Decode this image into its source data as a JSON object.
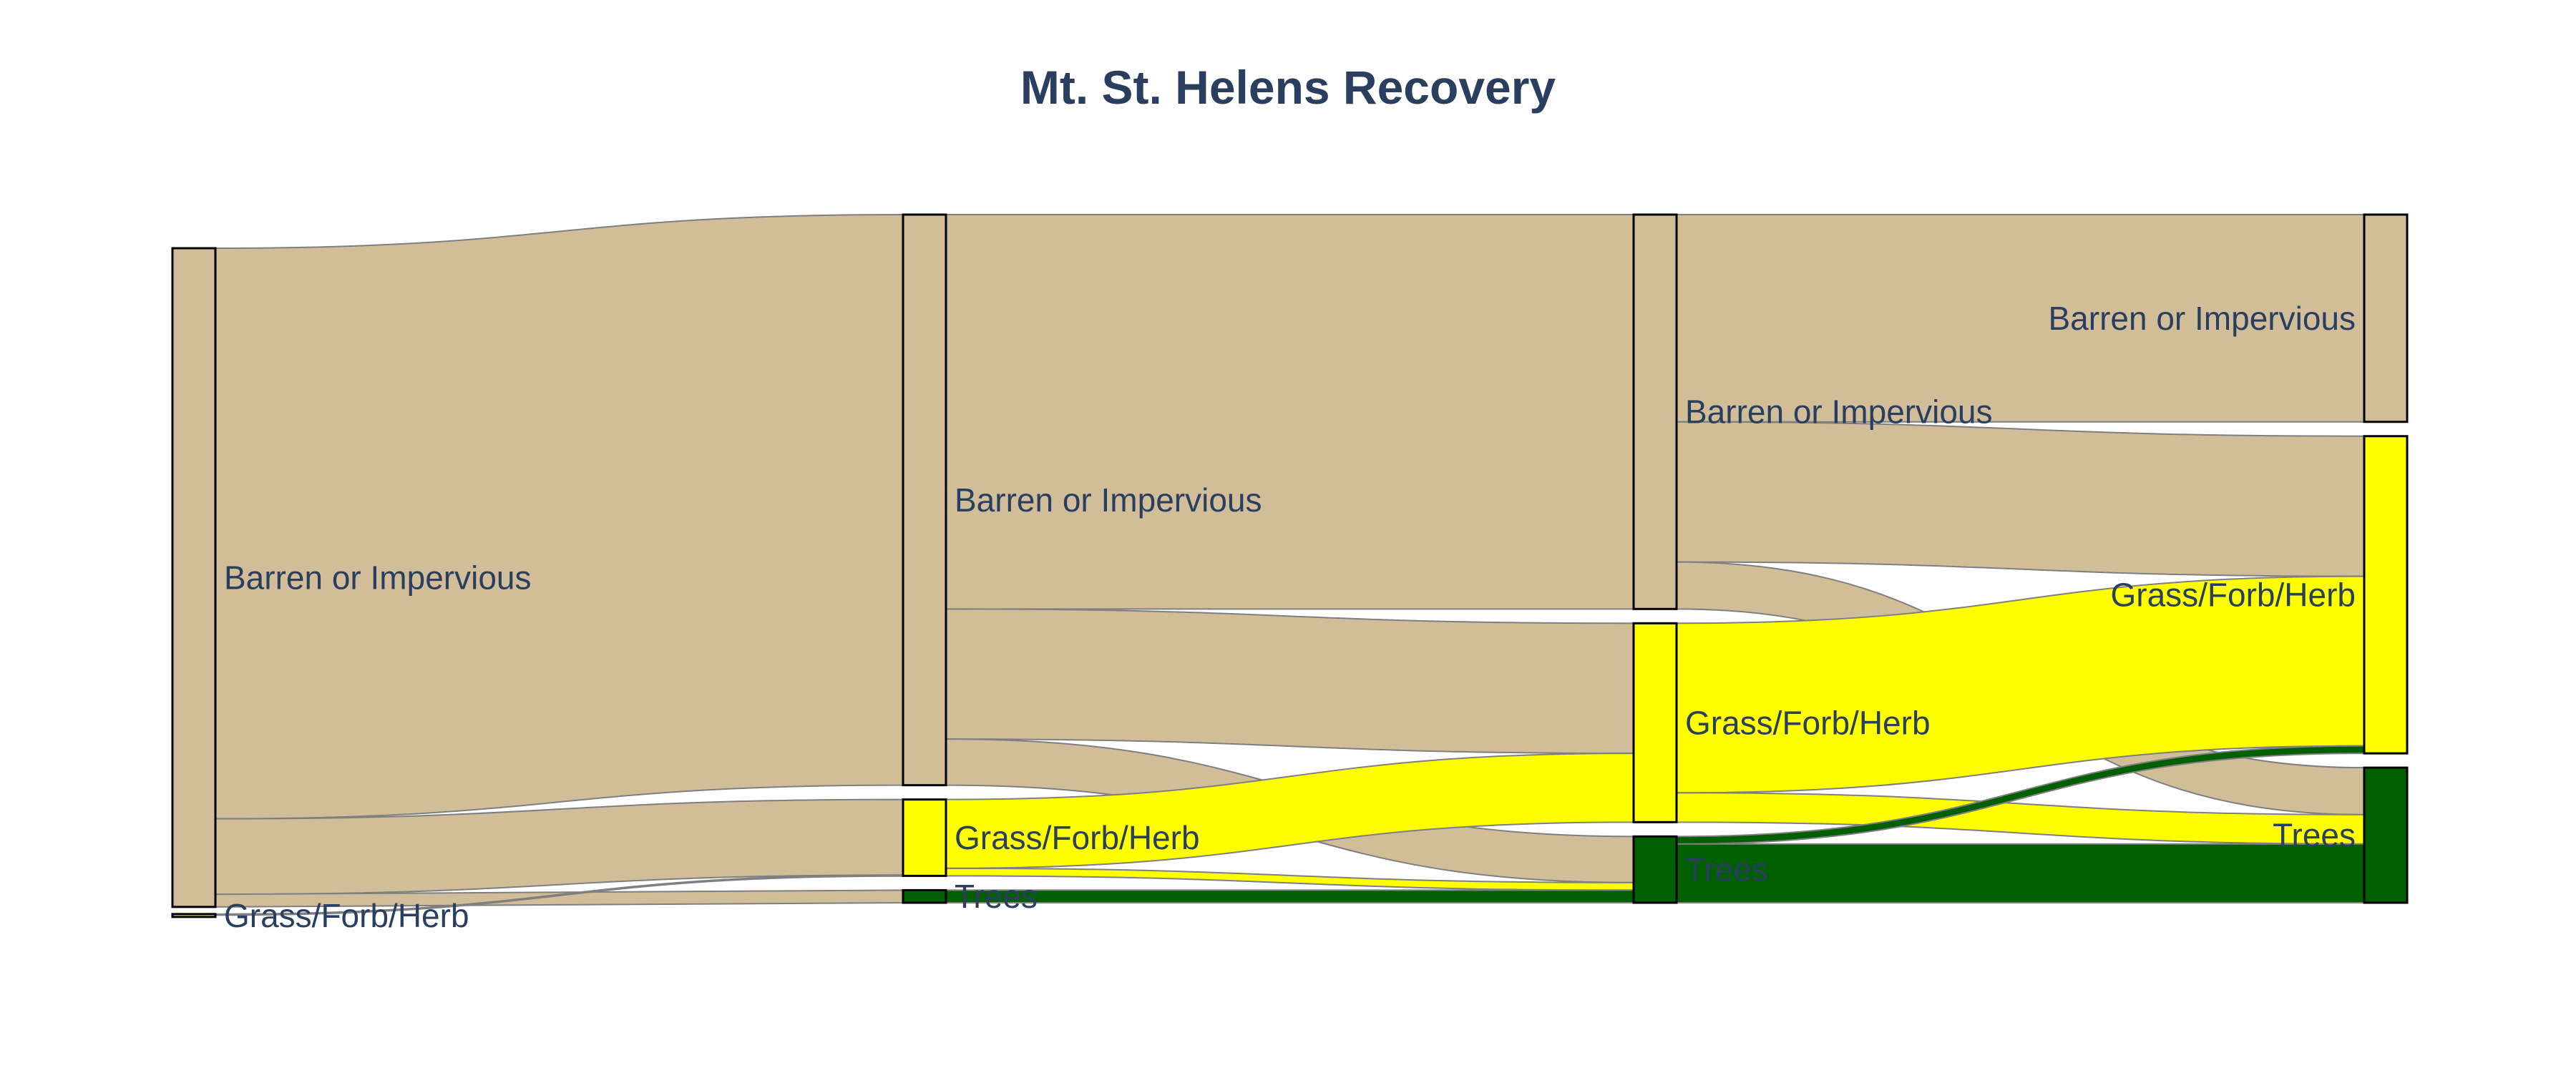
{
  "chart_data": {
    "type": "sankey",
    "title": "Mt. St. Helens Recovery",
    "colors": {
      "Barren or Impervious": "#d2bd99",
      "Grass/Forb/Herb": "#ffff00",
      "Trees": "#005f00",
      "link_stroke": "#7f7f7f",
      "node_stroke": "#000000",
      "text": "#2a3f5f"
    },
    "nodes": [
      {
        "id": "b0",
        "label": "Barren or Impervious",
        "category": "Barren or Impervious",
        "stage": 0
      },
      {
        "id": "g0",
        "label": "Grass/Forb/Herb",
        "category": "Grass/Forb/Herb",
        "stage": 0
      },
      {
        "id": "b1",
        "label": "Barren or Impervious",
        "category": "Barren or Impervious",
        "stage": 1
      },
      {
        "id": "g1",
        "label": "Grass/Forb/Herb",
        "category": "Grass/Forb/Herb",
        "stage": 1
      },
      {
        "id": "t1",
        "label": "Trees",
        "category": "Trees",
        "stage": 1
      },
      {
        "id": "b2",
        "label": "Barren or Impervious",
        "category": "Barren or Impervious",
        "stage": 2
      },
      {
        "id": "g2",
        "label": "Grass/Forb/Herb",
        "category": "Grass/Forb/Herb",
        "stage": 2
      },
      {
        "id": "t2",
        "label": "Trees",
        "category": "Trees",
        "stage": 2
      },
      {
        "id": "b3",
        "label": "Barren or Impervious",
        "category": "Barren or Impervious",
        "stage": 3
      },
      {
        "id": "g3",
        "label": "Grass/Forb/Herb",
        "category": "Grass/Forb/Herb",
        "stage": 3
      },
      {
        "id": "t3",
        "label": "Trees",
        "category": "Trees",
        "stage": 3
      }
    ],
    "links": [
      {
        "source": "b0",
        "target": "b1",
        "value": 680,
        "color_of": "b0"
      },
      {
        "source": "b0",
        "target": "g1",
        "value": 90,
        "color_of": "b0"
      },
      {
        "source": "b0",
        "target": "t1",
        "value": 15,
        "color_of": "b0"
      },
      {
        "source": "g0",
        "target": "g1",
        "value": 1,
        "color_of": "g0"
      },
      {
        "source": "b1",
        "target": "b2",
        "value": 470,
        "color_of": "b1"
      },
      {
        "source": "b1",
        "target": "g2",
        "value": 155,
        "color_of": "b1"
      },
      {
        "source": "b1",
        "target": "t2",
        "value": 55,
        "color_of": "b1"
      },
      {
        "source": "g1",
        "target": "g2",
        "value": 82,
        "color_of": "g1"
      },
      {
        "source": "g1",
        "target": "t2",
        "value": 9,
        "color_of": "g1"
      },
      {
        "source": "t1",
        "target": "t2",
        "value": 15,
        "color_of": "t1"
      },
      {
        "source": "b2",
        "target": "b3",
        "value": 247,
        "color_of": "b2"
      },
      {
        "source": "b2",
        "target": "g3",
        "value": 167,
        "color_of": "b2"
      },
      {
        "source": "b2",
        "target": "t3",
        "value": 56,
        "color_of": "b2"
      },
      {
        "source": "g2",
        "target": "g3",
        "value": 202,
        "color_of": "g2"
      },
      {
        "source": "g2",
        "target": "t3",
        "value": 35,
        "color_of": "g2"
      },
      {
        "source": "t2",
        "target": "g3",
        "value": 9,
        "color_of": "t2"
      },
      {
        "source": "t2",
        "target": "t3",
        "value": 70,
        "color_of": "t2"
      }
    ]
  }
}
